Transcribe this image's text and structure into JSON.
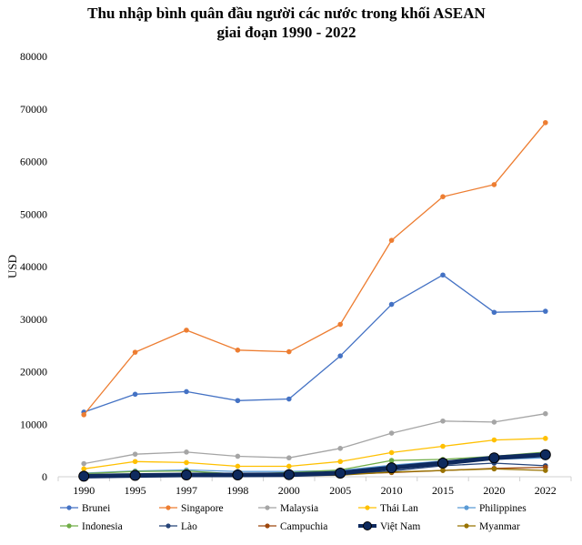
{
  "chart_data": {
    "type": "line",
    "title_lines": [
      "Thu nhập bình quân đầu người các nước trong khối ASEAN",
      "giai đoạn 1990 - 2022"
    ],
    "xlabel": "",
    "ylabel": "USD",
    "ylim": [
      0,
      80000
    ],
    "yticks": [
      "0",
      "10000",
      "20000",
      "30000",
      "40000",
      "50000",
      "60000",
      "70000",
      "80000"
    ],
    "categories": [
      "1990",
      "1995",
      "1997",
      "1998",
      "2000",
      "2005",
      "2010",
      "2015",
      "2020",
      "2022"
    ],
    "grid": false,
    "legend_position": "bottom",
    "series": [
      {
        "name": "Brunei",
        "color": "#4472C4",
        "values": [
          12300,
          15700,
          16200,
          14500,
          14800,
          23000,
          32800,
          38400,
          31300,
          31500
        ]
      },
      {
        "name": "Singapore",
        "color": "#ED7D31",
        "values": [
          11800,
          23700,
          27900,
          24100,
          23800,
          29000,
          45000,
          53300,
          55600,
          67400
        ]
      },
      {
        "name": "Malaysia",
        "color": "#A5A5A5",
        "values": [
          2500,
          4300,
          4700,
          3900,
          3600,
          5400,
          8300,
          10600,
          10400,
          12000
        ]
      },
      {
        "name": "Thái Lan",
        "color": "#FFC000",
        "values": [
          1500,
          2900,
          2700,
          2000,
          2000,
          2900,
          4600,
          5800,
          7000,
          7300
        ]
      },
      {
        "name": "Philippines",
        "color": "#5B9BD5",
        "values": [
          700,
          1100,
          1300,
          1000,
          1000,
          1200,
          2200,
          3000,
          3300,
          3600
        ]
      },
      {
        "name": "Indonesia",
        "color": "#70AD47",
        "values": [
          600,
          1000,
          1100,
          500,
          800,
          1300,
          3100,
          3300,
          3900,
          4700
        ]
      },
      {
        "name": "Lào",
        "color": "#264478",
        "values": [
          200,
          350,
          350,
          250,
          300,
          450,
          1100,
          2100,
          2600,
          2100
        ]
      },
      {
        "name": "Campuchia",
        "color": "#9E480E",
        "values": [
          100,
          300,
          300,
          250,
          300,
          450,
          800,
          1200,
          1600,
          1800
        ]
      },
      {
        "name": "Việt Nam",
        "color": "#0E2A5E",
        "values": [
          100,
          250,
          350,
          350,
          400,
          700,
          1700,
          2600,
          3600,
          4200
        ]
      },
      {
        "name": "Myanmar",
        "color": "#997300",
        "values": [
          100,
          150,
          200,
          200,
          200,
          300,
          900,
          1200,
          1500,
          1200
        ]
      }
    ]
  }
}
